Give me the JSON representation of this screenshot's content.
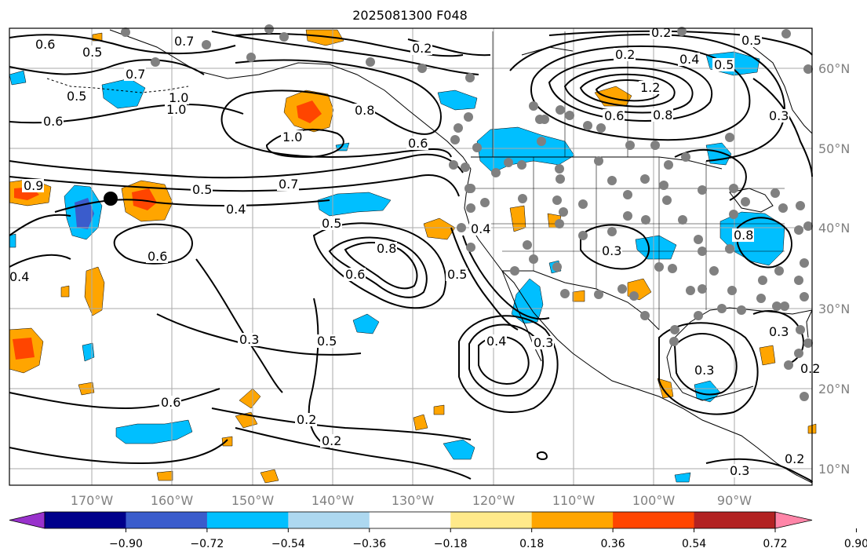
{
  "title": "2025081300 F048",
  "longitude_labels": [
    "170°W",
    "160°W",
    "150°W",
    "140°W",
    "130°W",
    "120°W",
    "110°W",
    "100°W",
    "90°W"
  ],
  "latitude_labels": [
    "60°N",
    "50°N",
    "40°N",
    "30°N",
    "20°N",
    "10°N"
  ],
  "colorbar": {
    "colors": [
      "#9932cc",
      "#00008b",
      "#3a5ccc",
      "#00bfff",
      "#add8f0",
      "#ffffff",
      "#ffe98a",
      "#ffa500",
      "#ff4500",
      "#b22222",
      "#ff85a8"
    ],
    "tick_labels": [
      "−0.90",
      "−0.72",
      "−0.54",
      "−0.36",
      "−0.18",
      "0.18",
      "0.36",
      "0.54",
      "0.72",
      "0.90"
    ]
  },
  "contour_labels": [
    "0.6",
    "0.5",
    "0.7",
    "0.2",
    "0.2",
    "0.5",
    "0.2",
    "0.4",
    "0.5",
    "1.0",
    "1.2",
    "0.8",
    "0.6",
    "0.3",
    "0.5",
    "0.6",
    "1.0",
    "0.8",
    "0.6",
    "0.9",
    "0.5",
    "0.7",
    "0.4",
    "0.5",
    "0.6",
    "0.8",
    "0.6",
    "0.4",
    "0.5",
    "0.3",
    "0.8",
    "0.3",
    "0.5",
    "0.3",
    "0.2",
    "0.6",
    "0.4",
    "0.3",
    "0.3",
    "0.2",
    "0.3",
    "0.2",
    "0.2",
    "0.4",
    "0.7",
    "1.0"
  ],
  "highlight_marker": "black-dot",
  "station_marker_color": "#808080"
}
